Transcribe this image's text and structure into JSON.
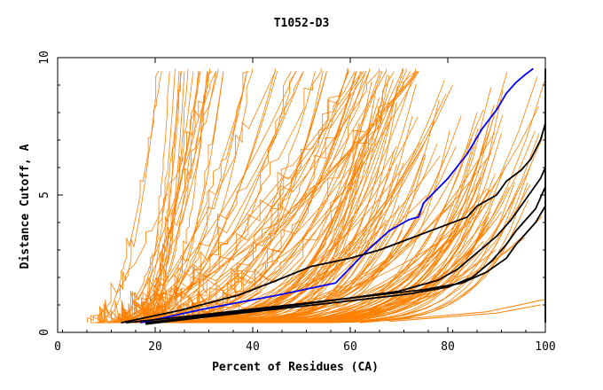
{
  "chart_data": {
    "type": "line",
    "title": "T1052-D3",
    "xlabel": "Percent of Residues (CA)",
    "ylabel": "Distance Cutoff, A",
    "xlim": [
      0,
      100
    ],
    "ylim": [
      0,
      10
    ],
    "x_ticks": [
      "0",
      "20",
      "40",
      "60",
      "80",
      "100"
    ],
    "y_ticks": [
      "0",
      "5",
      "10"
    ],
    "grid": false,
    "colors": {
      "background_models": "#ff8000",
      "highlight_blue": "#0000ff",
      "highlight_black": "#000000"
    },
    "series": [
      {
        "color": "#0000ff",
        "x": [
          17,
          30,
          45,
          57,
          63,
          68,
          72,
          74,
          75,
          80,
          84,
          87,
          90,
          92,
          94,
          96,
          97.5
        ],
        "y": [
          0.35,
          0.85,
          1.35,
          1.8,
          2.9,
          3.7,
          4.1,
          4.2,
          4.7,
          5.6,
          6.5,
          7.4,
          8.1,
          8.7,
          9.1,
          9.4,
          9.6
        ]
      },
      {
        "color": "#000000",
        "x": [
          13,
          25,
          37,
          45,
          52,
          60,
          66,
          72,
          78,
          84,
          86,
          90,
          92,
          95,
          97,
          99,
          100
        ],
        "y": [
          0.35,
          0.8,
          1.35,
          1.9,
          2.4,
          2.7,
          3.0,
          3.4,
          3.8,
          4.2,
          4.6,
          5.0,
          5.5,
          5.9,
          6.3,
          7.0,
          7.6
        ]
      },
      {
        "color": "#000000",
        "x": [
          18,
          30,
          45,
          60,
          70,
          78,
          82,
          86,
          90,
          93,
          95,
          97,
          99,
          100
        ],
        "y": [
          0.35,
          0.6,
          0.9,
          1.25,
          1.5,
          1.9,
          2.3,
          2.9,
          3.5,
          4.1,
          4.6,
          5.1,
          5.6,
          6.0
        ]
      },
      {
        "color": "#000000",
        "x": [
          18,
          30,
          45,
          60,
          72,
          80,
          85,
          89,
          92,
          94,
          96,
          98,
          99,
          100
        ],
        "y": [
          0.3,
          0.55,
          0.85,
          1.15,
          1.4,
          1.65,
          2.0,
          2.6,
          3.2,
          3.7,
          4.1,
          4.5,
          4.9,
          5.3
        ]
      },
      {
        "color": "#000000",
        "x": [
          14,
          30,
          45,
          60,
          75,
          83,
          88,
          92,
          94,
          96,
          98,
          99,
          100
        ],
        "y": [
          0.35,
          0.65,
          0.95,
          1.25,
          1.55,
          1.8,
          2.2,
          2.7,
          3.2,
          3.6,
          4.0,
          4.3,
          4.6
        ]
      },
      {
        "color": "#000000",
        "x": [
          100,
          100
        ],
        "y": [
          0.35,
          9.6
        ]
      }
    ]
  }
}
